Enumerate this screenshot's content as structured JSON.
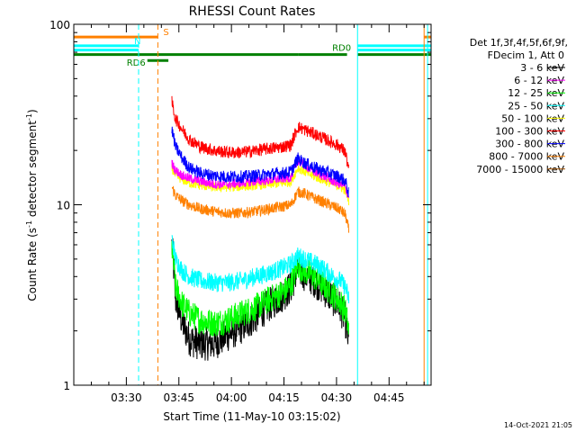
{
  "chart_data": {
    "type": "line",
    "title": "RHESSI Count Rates",
    "xlabel": "Start Time (11-May-10 03:15:02)",
    "ylabel": "Count Rate (s",
    "ylabel_sup": "-1",
    "ylabel_mid": " detector segment",
    "ylabel_end": ")",
    "yscale": "log",
    "ylim": [
      1,
      100
    ],
    "ytick_labels": [
      "1",
      "10",
      "100"
    ],
    "xlim_minutes": [
      0,
      102
    ],
    "xticks": [
      {
        "label": "03:30",
        "minutes": 15
      },
      {
        "label": "03:45",
        "minutes": 30
      },
      {
        "label": "04:00",
        "minutes": 45
      },
      {
        "label": "04:15",
        "minutes": 60
      },
      {
        "label": "04:30",
        "minutes": 75
      },
      {
        "label": "04:45",
        "minutes": 90
      }
    ],
    "legend": {
      "position": "right",
      "header1": "Det 1f,3f,4f,5f,6f,9f,",
      "header2": "FDecim 1, Att 0"
    },
    "series": [
      {
        "name": "3 - 6 keV",
        "color": "#000000",
        "x": [
          28,
          29,
          31,
          33,
          36,
          40,
          44,
          48,
          52,
          56,
          60,
          62,
          64,
          66,
          68,
          70,
          72,
          74,
          76,
          77.5,
          78.5
        ],
        "values": [
          6.0,
          3.0,
          2.2,
          1.8,
          1.7,
          1.7,
          1.9,
          2.1,
          2.4,
          2.8,
          3.2,
          3.5,
          4.4,
          4.1,
          3.9,
          3.6,
          3.3,
          3.0,
          2.7,
          2.3,
          1.7
        ]
      },
      {
        "name": "6 - 12 keV",
        "color": "#ff00ff",
        "x": [
          28,
          29,
          31,
          33,
          36,
          40,
          44,
          48,
          52,
          56,
          60,
          62,
          64,
          66,
          68,
          70,
          72,
          74,
          76,
          77.5,
          78.5
        ],
        "values": [
          17.0,
          15.5,
          14.5,
          14.0,
          13.5,
          13.0,
          13.0,
          13.2,
          13.5,
          13.7,
          14.0,
          14.2,
          17.5,
          16.5,
          15.5,
          14.8,
          14.2,
          13.5,
          13.0,
          12.5,
          11.0
        ]
      },
      {
        "name": "12 - 25 keV",
        "color": "#00ff00",
        "x": [
          28,
          29,
          31,
          33,
          36,
          40,
          44,
          48,
          52,
          56,
          60,
          62,
          64,
          66,
          68,
          70,
          72,
          74,
          76,
          77.5,
          78.5
        ],
        "values": [
          5.8,
          3.5,
          2.8,
          2.5,
          2.3,
          2.2,
          2.3,
          2.5,
          2.7,
          3.0,
          3.3,
          3.6,
          4.6,
          4.3,
          4.1,
          3.8,
          3.5,
          3.2,
          2.9,
          2.6,
          2.0
        ]
      },
      {
        "name": "25 - 50 keV",
        "color": "#00ffff",
        "x": [
          28,
          29,
          31,
          33,
          36,
          40,
          44,
          48,
          52,
          56,
          60,
          62,
          64,
          66,
          68,
          70,
          72,
          74,
          76,
          77.5,
          78.5
        ],
        "values": [
          6.5,
          5.0,
          4.3,
          4.0,
          3.8,
          3.7,
          3.7,
          3.8,
          4.0,
          4.2,
          4.5,
          4.7,
          5.2,
          5.0,
          4.8,
          4.6,
          4.3,
          4.0,
          3.8,
          3.5,
          3.0
        ]
      },
      {
        "name": "50 - 100 keV",
        "color": "#ffff00",
        "x": [
          28,
          29,
          31,
          33,
          36,
          40,
          44,
          48,
          52,
          56,
          60,
          62,
          64,
          66,
          68,
          70,
          72,
          74,
          76,
          77.5,
          78.5
        ],
        "values": [
          16.0,
          14.5,
          13.8,
          13.2,
          12.8,
          12.5,
          12.5,
          12.6,
          12.8,
          13.0,
          13.2,
          13.4,
          16.0,
          15.2,
          14.5,
          14.0,
          13.5,
          13.0,
          12.6,
          12.0,
          10.5
        ]
      },
      {
        "name": "100 - 300 keV",
        "color": "#ff0000",
        "x": [
          28,
          29,
          31,
          33,
          36,
          40,
          44,
          48,
          52,
          56,
          60,
          62,
          64,
          66,
          68,
          70,
          72,
          74,
          76,
          77.5,
          78.5
        ],
        "values": [
          37.0,
          30.0,
          26.0,
          23.0,
          21.0,
          20.0,
          19.5,
          19.5,
          20.0,
          20.5,
          21.0,
          21.5,
          27.0,
          26.0,
          25.0,
          24.0,
          23.0,
          22.0,
          21.0,
          19.5,
          15.5
        ]
      },
      {
        "name": "300 - 800 keV",
        "color": "#0000ff",
        "x": [
          28,
          29,
          31,
          33,
          36,
          40,
          44,
          48,
          52,
          56,
          60,
          62,
          64,
          66,
          68,
          70,
          72,
          74,
          76,
          77.5,
          78.5
        ],
        "values": [
          26.0,
          21.0,
          18.0,
          16.0,
          15.0,
          14.5,
          14.3,
          14.3,
          14.5,
          14.8,
          15.0,
          15.2,
          18.0,
          17.0,
          16.3,
          15.7,
          15.2,
          14.7,
          14.2,
          13.5,
          11.5
        ]
      },
      {
        "name": "800 - 7000 keV",
        "color": "#ff8000",
        "x": [
          28,
          29,
          31,
          33,
          36,
          40,
          44,
          48,
          52,
          56,
          60,
          62,
          64,
          66,
          68,
          70,
          72,
          74,
          76,
          77.5,
          78.5
        ],
        "values": [
          12.5,
          11.3,
          10.5,
          10.0,
          9.5,
          9.2,
          9.0,
          9.0,
          9.2,
          9.5,
          9.8,
          10.0,
          11.8,
          11.5,
          11.0,
          10.6,
          10.2,
          9.8,
          9.4,
          8.8,
          7.2
        ]
      },
      {
        "name": "7000 - 15000 keV",
        "color": "#a05000",
        "x": [],
        "values": []
      }
    ],
    "flag_bars": [
      {
        "label": "S",
        "color": "#ff8000",
        "segments": [
          [
            0,
            24
          ],
          [
            100,
            102
          ]
        ],
        "y": 85
      },
      {
        "label": "N",
        "color": "#00ffff",
        "segments": [
          [
            0,
            18.5
          ],
          [
            81,
            102
          ]
        ],
        "y": 76
      },
      {
        "label": "",
        "color": "#00ffff",
        "segments": [
          [
            0,
            18.5
          ],
          [
            81,
            102
          ]
        ],
        "y": 72
      },
      {
        "label": "RD0",
        "color": "#008000",
        "segments": [
          [
            0,
            64
          ],
          [
            64,
            78
          ],
          [
            81,
            102
          ]
        ],
        "y": 68
      },
      {
        "label": "RD6",
        "color": "#008000",
        "segments": [
          [
            21,
            27
          ]
        ],
        "y": 63
      }
    ],
    "vertical_lines": [
      {
        "minutes": 18.5,
        "color": "#00ffff",
        "style": "dashed"
      },
      {
        "minutes": 24,
        "color": "#ff8000",
        "style": "dashed"
      },
      {
        "minutes": 81,
        "color": "#00ffff",
        "style": "solid"
      },
      {
        "minutes": 100,
        "color": "#ff8000",
        "style": "solid"
      },
      {
        "minutes": 101,
        "color": "#00ffff",
        "style": "solid"
      }
    ],
    "footer": "14-Oct-2021 21:05"
  }
}
